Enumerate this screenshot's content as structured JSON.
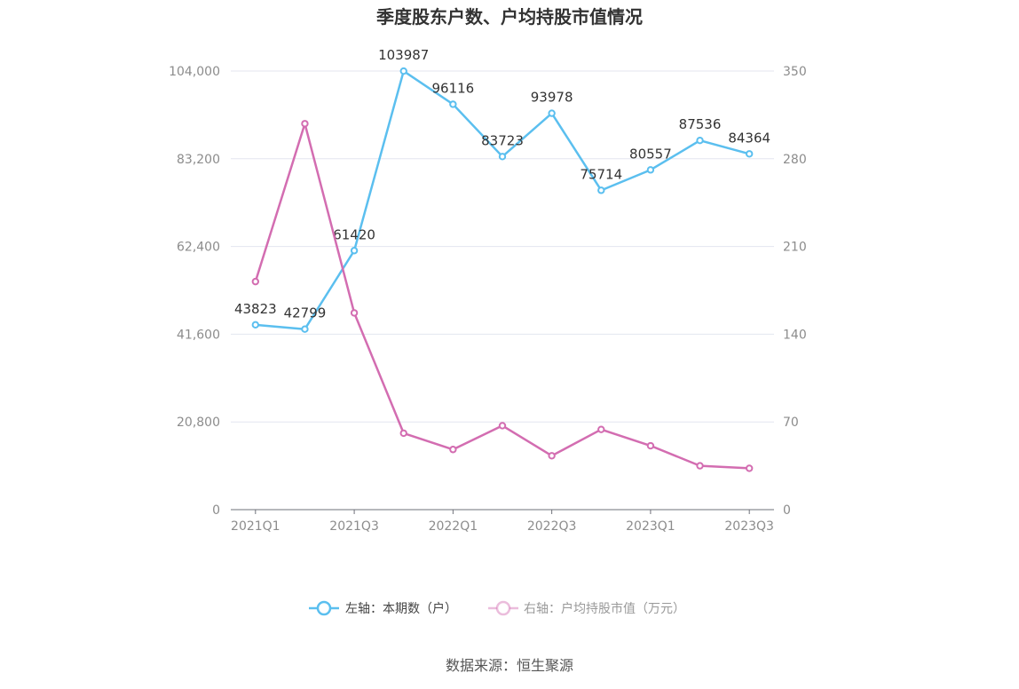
{
  "chart_data": {
    "type": "line",
    "title": "季度股东户数、户均持股市值情况",
    "categories": [
      "2021Q1",
      "2021Q2",
      "2021Q3",
      "2021Q4",
      "2022Q1",
      "2022Q2",
      "2022Q3",
      "2022Q4",
      "2023Q1",
      "2023Q2",
      "2023Q3"
    ],
    "x_tick_labels": [
      "2021Q1",
      "2021Q3",
      "2022Q1",
      "2022Q3",
      "2023Q1",
      "2023Q3"
    ],
    "y_left": {
      "min": 0,
      "max": 104000,
      "ticks": [
        "0",
        "20,800",
        "41,600",
        "62,400",
        "83,200",
        "104,000"
      ]
    },
    "y_right": {
      "min": 0,
      "max": 350,
      "ticks": [
        "0",
        "70",
        "140",
        "210",
        "280",
        "350"
      ]
    },
    "series": [
      {
        "name": "左轴：本期数（户）",
        "axis": "left",
        "color": "#5bbfef",
        "values": [
          43823,
          42799,
          61420,
          103987,
          96116,
          83723,
          93978,
          75714,
          80557,
          87536,
          84364
        ],
        "labels": [
          "43823",
          "42799",
          "61420",
          "103987",
          "96116",
          "83723",
          "93978",
          "75714",
          "80557",
          "87536",
          "84364"
        ]
      },
      {
        "name": "右轴：户均持股市值（万元）",
        "axis": "right",
        "color": "#d36db1",
        "values": [
          182,
          308,
          157,
          61,
          48,
          67,
          43,
          64,
          51,
          35,
          33
        ]
      }
    ],
    "grid": true,
    "legend_position": "bottom"
  },
  "footer": {
    "source": "数据来源：恒生聚源"
  }
}
